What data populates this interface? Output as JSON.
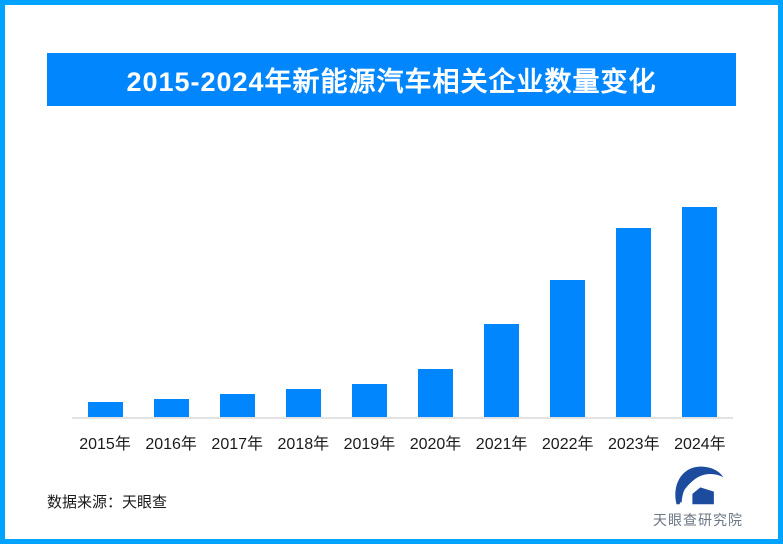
{
  "page": {
    "background_color": "#ffffff",
    "border_color": "#02a2ff"
  },
  "banner": {
    "title": "2015-2024年新能源汽车相关企业数量变化",
    "bg_color": "#0286fe",
    "text_color": "#ffffff"
  },
  "chart_data": {
    "type": "bar",
    "title": "2015-2024年新能源汽车相关企业数量变化",
    "categories": [
      "2015年",
      "2016年",
      "2017年",
      "2018年",
      "2019年",
      "2020年",
      "2021年",
      "2022年",
      "2023年",
      "2024年"
    ],
    "values": [
      7,
      8.5,
      11,
      13.5,
      15.5,
      23,
      44.5,
      65,
      90,
      100
    ],
    "value_basis": "no value axis shown in image; values are estimated relative bar heights normalized to 2024 = 100",
    "xlabel": "",
    "ylabel": "",
    "ylim": [
      0,
      100
    ],
    "grid": false,
    "legend": false,
    "bar_color": "#0286fe",
    "axis_line_color": "#e2e2e2",
    "tick_label_color": "#1a1a1a"
  },
  "footer": {
    "source_text": "数据来源：天眼查",
    "brand_name": "天眼查研究院",
    "logo_icon": "tianyancha-eye-logo",
    "logo_color": "#1d4c9f",
    "brand_text_color": "#6b7684"
  }
}
